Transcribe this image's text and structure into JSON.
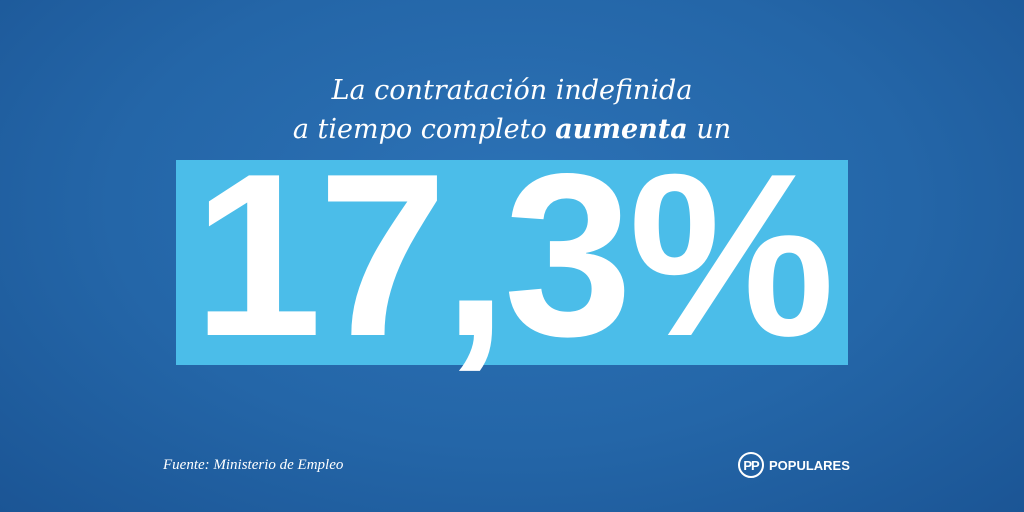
{
  "headline": {
    "line1": "La contratación indefinida",
    "line2_start": "a tiempo completo",
    "line2_bold": "aumenta",
    "line2_end": "un"
  },
  "figure": "17,3%",
  "source": "Fuente: Ministerio de Empleo",
  "logo": {
    "mark": "PP",
    "name": "POPULARES"
  }
}
